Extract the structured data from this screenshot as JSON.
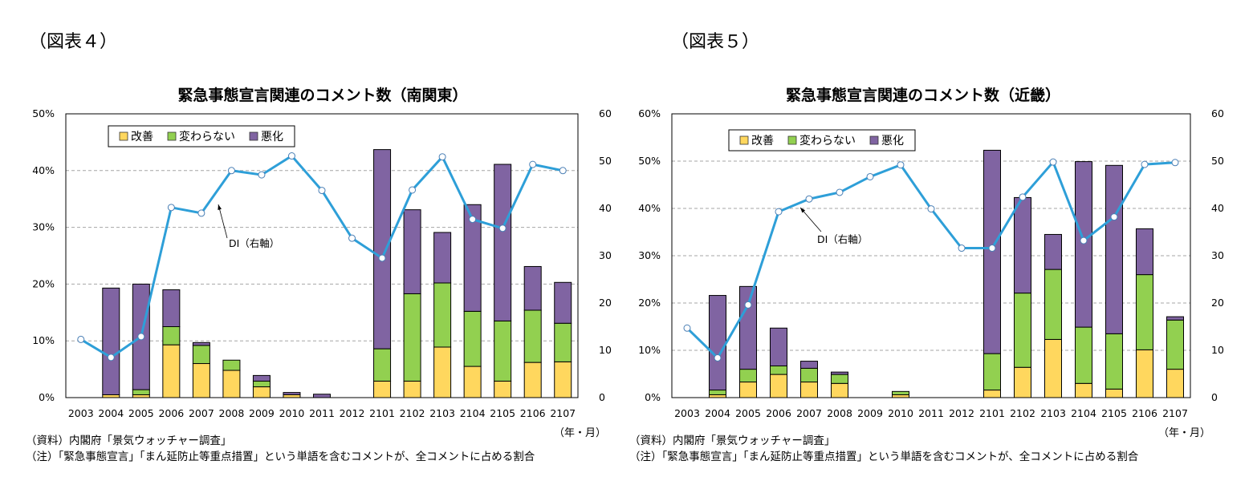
{
  "chart_data": [
    {
      "figure_label": "（図表４）",
      "type": "bar+line",
      "title": "緊急事態宣言関連のコメント数（南関東）",
      "categories": [
        "2003",
        "2004",
        "2005",
        "2006",
        "2007",
        "2008",
        "2009",
        "2010",
        "2011",
        "2012",
        "2101",
        "2102",
        "2103",
        "2104",
        "2105",
        "2106",
        "2107"
      ],
      "x_unit_label": "（年・月）",
      "y_left": {
        "range": [
          0,
          50
        ],
        "ticks": [
          "0%",
          "10%",
          "20%",
          "30%",
          "40%",
          "50%"
        ],
        "unit": "%"
      },
      "y_right": {
        "range": [
          0,
          60
        ],
        "ticks": [
          "0",
          "10",
          "20",
          "30",
          "40",
          "50",
          "60"
        ]
      },
      "grid": true,
      "legend": "top-left",
      "series": [
        {
          "name": "改善",
          "type": "stacked-bar",
          "color": "#FFD75E",
          "values": [
            0,
            0.5,
            0.5,
            9.3,
            6.0,
            4.8,
            1.9,
            0.5,
            0,
            0,
            2.9,
            2.9,
            8.9,
            5.5,
            2.9,
            6.2,
            6.3
          ]
        },
        {
          "name": "変わらない",
          "type": "stacked-bar",
          "color": "#92D050",
          "values": [
            0,
            0,
            0.9,
            3.2,
            3.2,
            1.8,
            1.0,
            0,
            0,
            0,
            5.7,
            15.4,
            11.3,
            9.7,
            10.6,
            9.2,
            6.8
          ]
        },
        {
          "name": "悪化",
          "type": "stacked-bar",
          "color": "#8064A2",
          "values": [
            0,
            18.8,
            18.6,
            6.5,
            0.5,
            0,
            1.0,
            0.4,
            0.6,
            0,
            35.1,
            14.8,
            8.9,
            18.8,
            27.6,
            7.7,
            7.2
          ]
        },
        {
          "name": "DI",
          "type": "line",
          "axis": "right",
          "color": "#2E9FD8",
          "values": [
            12.3,
            8.5,
            12.9,
            40.2,
            39.0,
            48.0,
            47.1,
            51.1,
            43.8,
            33.7,
            29.5,
            43.9,
            50.9,
            37.7,
            35.8,
            49.3,
            48.0
          ]
        }
      ],
      "annotation": "DI（右軸）",
      "source": "（資料）内閣府「景気ウォッチャー調査」",
      "note": "（注）「緊急事態宣言」「まん延防止等重点措置」という単語を含むコメントが、全コメントに占める割合"
    },
    {
      "figure_label": "（図表５）",
      "type": "bar+line",
      "title": "緊急事態宣言関連のコメント数（近畿）",
      "categories": [
        "2003",
        "2004",
        "2005",
        "2006",
        "2007",
        "2008",
        "2009",
        "2010",
        "2011",
        "2012",
        "2101",
        "2102",
        "2103",
        "2104",
        "2105",
        "2106",
        "2107"
      ],
      "x_unit_label": "（年・月）",
      "y_left": {
        "range": [
          0,
          60
        ],
        "ticks": [
          "0%",
          "10%",
          "20%",
          "30%",
          "40%",
          "50%",
          "60%"
        ],
        "unit": "%"
      },
      "y_right": {
        "range": [
          0,
          60
        ],
        "ticks": [
          "0",
          "10",
          "20",
          "30",
          "40",
          "50",
          "60"
        ]
      },
      "grid": true,
      "legend": "top-left",
      "series": [
        {
          "name": "改善",
          "type": "stacked-bar",
          "color": "#FFD75E",
          "values": [
            0,
            0.6,
            3.3,
            4.9,
            3.3,
            3.0,
            0,
            0.6,
            0,
            0,
            1.6,
            6.4,
            12.3,
            3.0,
            1.8,
            10.1,
            6.0
          ]
        },
        {
          "name": "変わらない",
          "type": "stacked-bar",
          "color": "#92D050",
          "values": [
            0,
            1.0,
            2.7,
            1.8,
            2.9,
            1.9,
            0,
            0.7,
            0,
            0,
            7.7,
            15.7,
            14.8,
            11.9,
            11.7,
            15.9,
            10.4
          ]
        },
        {
          "name": "悪化",
          "type": "stacked-bar",
          "color": "#8064A2",
          "values": [
            0,
            20.0,
            17.5,
            8.0,
            1.5,
            0.5,
            0,
            0,
            0,
            0,
            43.0,
            20.2,
            7.4,
            35.0,
            35.6,
            9.7,
            0.7
          ]
        },
        {
          "name": "DI",
          "type": "line",
          "axis": "right",
          "color": "#2E9FD8",
          "values": [
            14.7,
            8.4,
            19.6,
            39.3,
            42.0,
            43.4,
            46.7,
            49.2,
            39.9,
            31.6,
            31.6,
            42.4,
            49.8,
            33.2,
            38.2,
            49.3,
            49.7
          ]
        }
      ],
      "annotation": "DI（右軸）",
      "source": "（資料）内閣府「景気ウォッチャー調査」",
      "note": "（注）「緊急事態宣言」「まん延防止等重点措置」という単語を含むコメントが、全コメントに占める割合"
    }
  ]
}
